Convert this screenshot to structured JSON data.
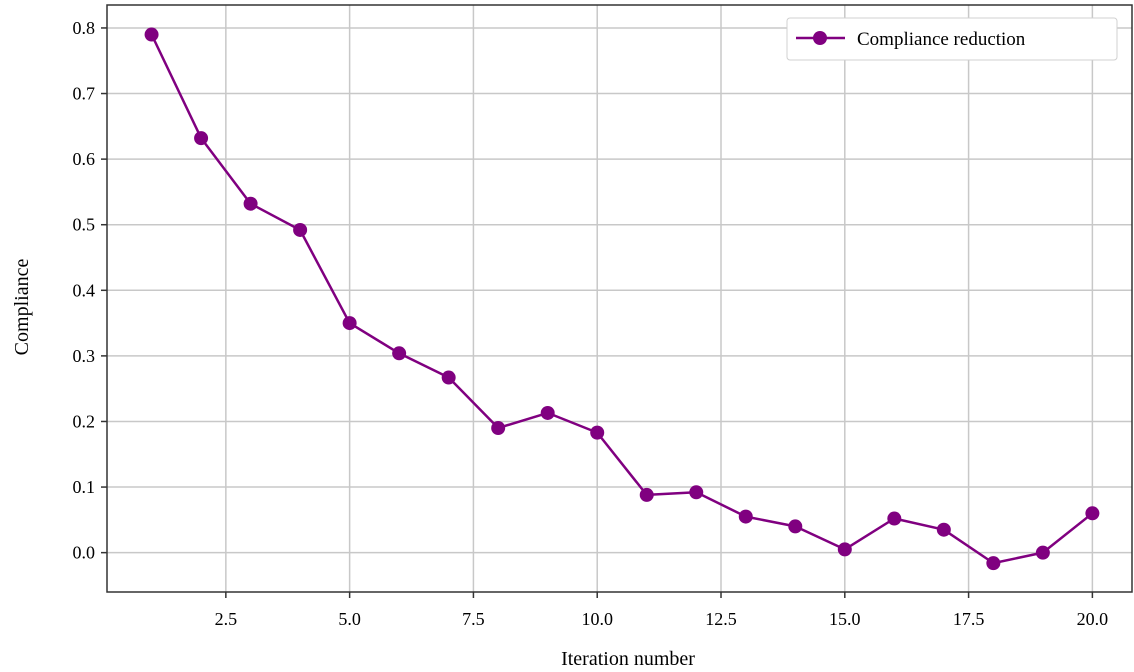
{
  "chart_data": {
    "type": "line",
    "title": "",
    "xlabel": "Iteration number",
    "ylabel": "Compliance",
    "xlim": [
      0.1,
      20.8
    ],
    "ylim": [
      -0.06,
      0.835
    ],
    "xticks": [
      2.5,
      5.0,
      7.5,
      10.0,
      12.5,
      15.0,
      17.5,
      20.0
    ],
    "xtick_labels": [
      "2.5",
      "5.0",
      "7.5",
      "10.0",
      "12.5",
      "15.0",
      "17.5",
      "20.0"
    ],
    "yticks": [
      0.0,
      0.1,
      0.2,
      0.3,
      0.4,
      0.5,
      0.6,
      0.7,
      0.8
    ],
    "ytick_labels": [
      "0.0",
      "0.1",
      "0.2",
      "0.3",
      "0.4",
      "0.5",
      "0.6",
      "0.7",
      "0.8"
    ],
    "grid": true,
    "legend_position": "top-right",
    "series": [
      {
        "name": "Compliance reduction",
        "color": "#800080",
        "marker": "circle",
        "x": [
          1,
          2,
          3,
          4,
          5,
          6,
          7,
          8,
          9,
          10,
          11,
          12,
          13,
          14,
          15,
          16,
          17,
          18,
          19,
          20
        ],
        "y": [
          0.79,
          0.632,
          0.532,
          0.492,
          0.35,
          0.304,
          0.267,
          0.19,
          0.213,
          0.183,
          0.088,
          0.092,
          0.055,
          0.04,
          0.005,
          0.052,
          0.035,
          -0.016,
          0.0,
          0.06
        ]
      }
    ]
  }
}
